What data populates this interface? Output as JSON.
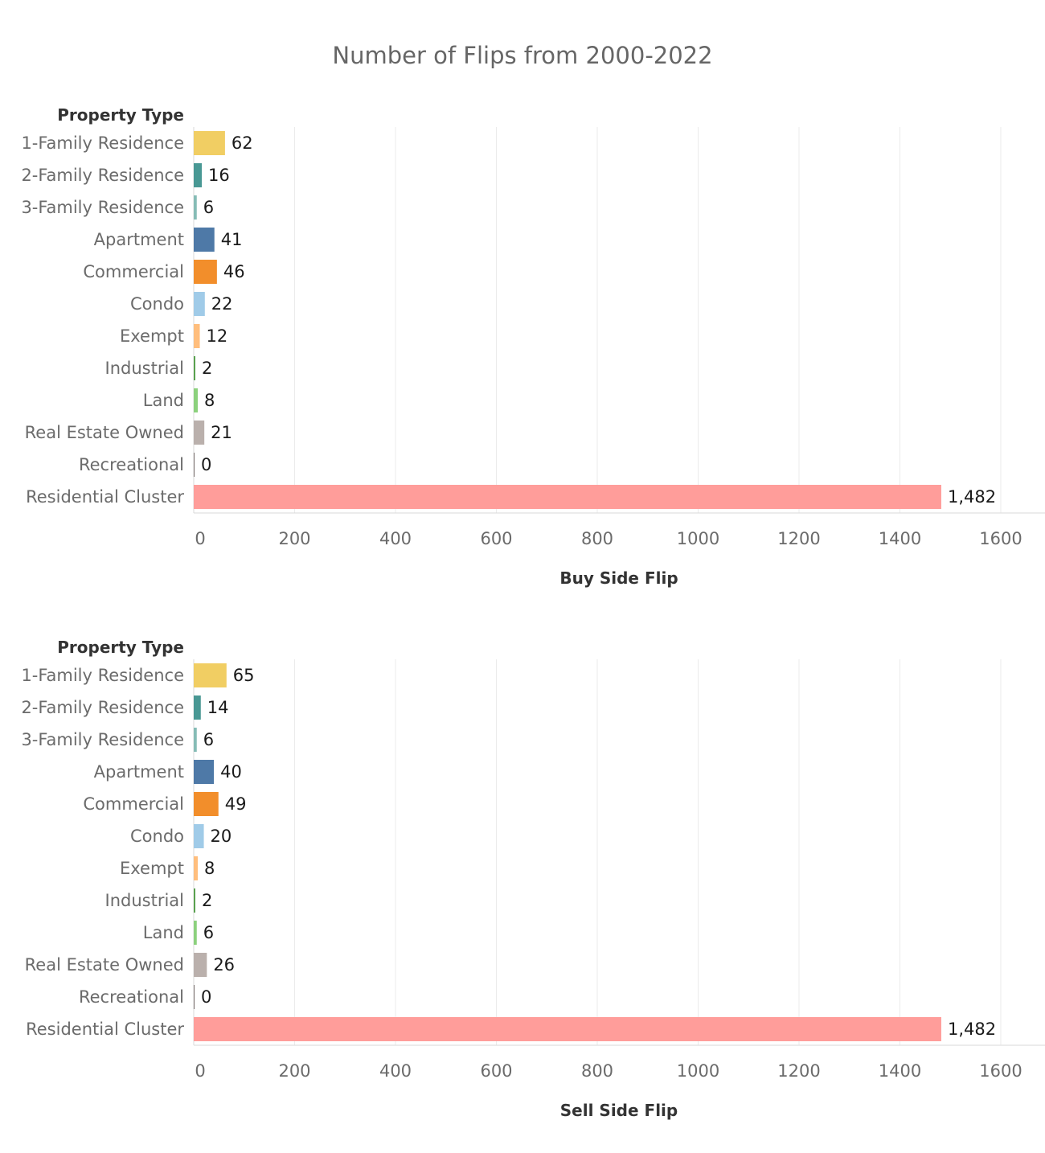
{
  "title": "Number of Flips from 2000-2022",
  "chart_data": [
    {
      "type": "bar",
      "orientation": "horizontal",
      "row_header": "Property Type",
      "xlabel": "Buy Side Flip",
      "xlim": [
        0,
        1600
      ],
      "ticks": [
        "0",
        "200",
        "400",
        "600",
        "800",
        "1000",
        "1200",
        "1400",
        "1600"
      ],
      "grid": true,
      "categories": [
        "1-Family Residence",
        "2-Family Residence",
        "3-Family Residence",
        "Apartment",
        "Commercial",
        "Condo",
        "Exempt",
        "Industrial",
        "Land",
        "Real Estate Owned",
        "Recreational",
        "Residential Cluster"
      ],
      "values": [
        62,
        16,
        6,
        41,
        46,
        22,
        12,
        2,
        8,
        21,
        0,
        1482
      ],
      "value_labels": [
        "62",
        "16",
        "6",
        "41",
        "46",
        "22",
        "12",
        "2",
        "8",
        "21",
        "0",
        "1,482"
      ],
      "colors": [
        "#f1ce63",
        "#499894",
        "#86bcb6",
        "#4e79a7",
        "#f28e2b",
        "#a0cbe8",
        "#ffbe7d",
        "#59a14f",
        "#8cd17d",
        "#bab0ac",
        "#79706e",
        "#ff9d9a"
      ]
    },
    {
      "type": "bar",
      "orientation": "horizontal",
      "row_header": "Property Type",
      "xlabel": "Sell Side Flip",
      "xlim": [
        0,
        1600
      ],
      "ticks": [
        "0",
        "200",
        "400",
        "600",
        "800",
        "1000",
        "1200",
        "1400",
        "1600"
      ],
      "grid": true,
      "categories": [
        "1-Family Residence",
        "2-Family Residence",
        "3-Family Residence",
        "Apartment",
        "Commercial",
        "Condo",
        "Exempt",
        "Industrial",
        "Land",
        "Real Estate Owned",
        "Recreational",
        "Residential Cluster"
      ],
      "values": [
        65,
        14,
        6,
        40,
        49,
        20,
        8,
        2,
        6,
        26,
        0,
        1482
      ],
      "value_labels": [
        "65",
        "14",
        "6",
        "40",
        "49",
        "20",
        "8",
        "2",
        "6",
        "26",
        "0",
        "1,482"
      ],
      "colors": [
        "#f1ce63",
        "#499894",
        "#86bcb6",
        "#4e79a7",
        "#f28e2b",
        "#a0cbe8",
        "#ffbe7d",
        "#59a14f",
        "#8cd17d",
        "#bab0ac",
        "#79706e",
        "#ff9d9a"
      ]
    }
  ]
}
